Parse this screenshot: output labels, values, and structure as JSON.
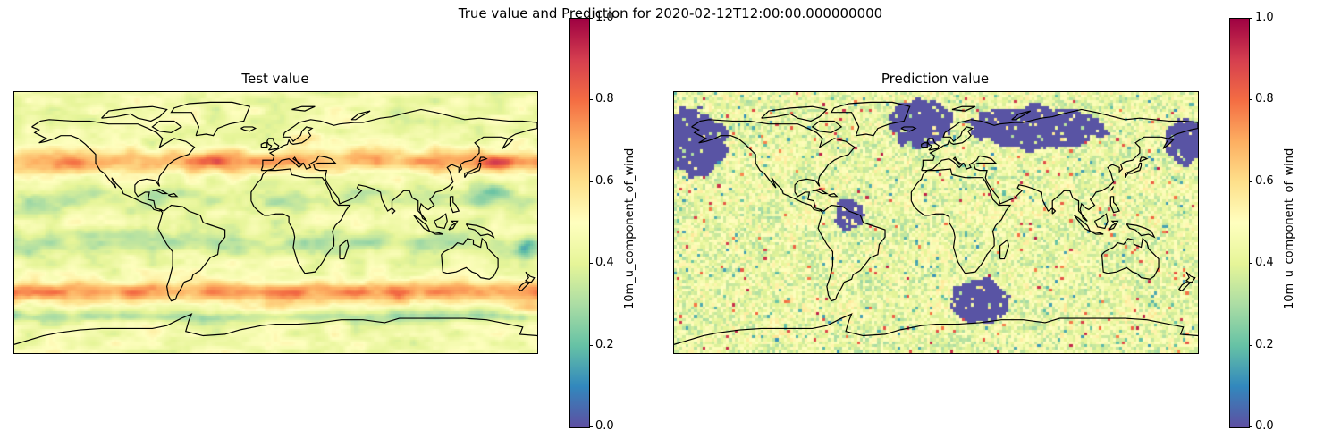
{
  "figure": {
    "suptitle": "True value and Prediction for 2020-02-12T12:00:00.000000000"
  },
  "panels": [
    {
      "title": "Test value",
      "colorbar": {
        "label": "10m_u_component_of_wind",
        "ticks": [
          "0.0",
          "0.2",
          "0.4",
          "0.6",
          "0.8",
          "1.0"
        ],
        "range": [
          0,
          1
        ],
        "colormap": "Spectral_r"
      }
    },
    {
      "title": "Prediction value",
      "colorbar": {
        "label": "10m_u_component_of_wind",
        "ticks": [
          "0.0",
          "0.2",
          "0.4",
          "0.6",
          "0.8",
          "1.0"
        ],
        "range": [
          0,
          1
        ],
        "colormap": "Spectral_r"
      }
    }
  ],
  "colors": {
    "colormap_stops": [
      "#5e4fa2",
      "#3288bd",
      "#66c2a5",
      "#abdda4",
      "#e6f598",
      "#ffffbf",
      "#fee08b",
      "#fdae61",
      "#f46d43",
      "#d53e4f",
      "#9e0142"
    ],
    "coastline": "#000000"
  }
}
